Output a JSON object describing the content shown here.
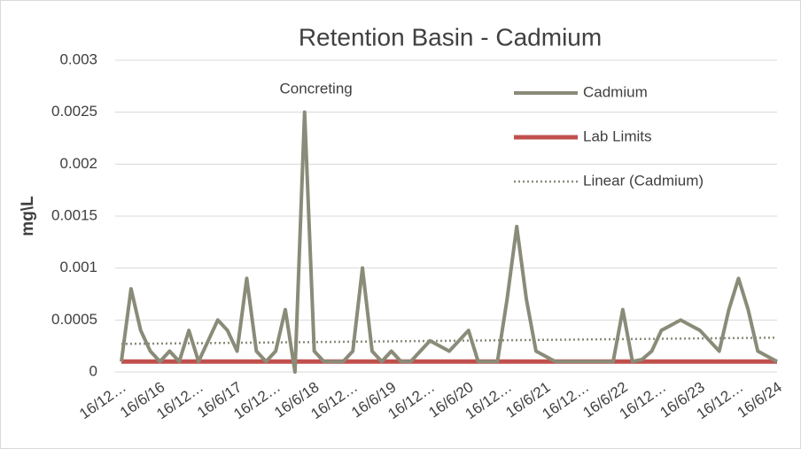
{
  "chart_data": {
    "type": "line",
    "title": "Retention Basin - Cadmium",
    "ylabel": "mg\\L",
    "annotations": [
      {
        "text": "Concreting",
        "category": 20
      }
    ],
    "categories": [
      "16/12…",
      null,
      null,
      null,
      "16/6/16",
      null,
      null,
      null,
      "16/12…",
      null,
      null,
      null,
      "16/6/17",
      null,
      null,
      null,
      "16/12…",
      null,
      null,
      null,
      "16/6/18",
      null,
      null,
      null,
      "16/12…",
      null,
      null,
      null,
      "16/6/19",
      null,
      null,
      null,
      "16/12…",
      null,
      null,
      null,
      "16/6/20",
      null,
      null,
      null,
      "16/12…",
      null,
      null,
      null,
      "16/6/21",
      null,
      null,
      null,
      "16/12…",
      null,
      null,
      null,
      "16/6/22",
      null,
      null,
      null,
      "16/12…",
      null,
      null,
      null,
      "16/6/23",
      null,
      null,
      null,
      "16/12…",
      null,
      null,
      null,
      "16/6/24"
    ],
    "series": [
      {
        "name": "Cadmium",
        "color": "#8a8b78",
        "width": 4,
        "values": [
          0.0001,
          0.0008,
          0.0004,
          0.0002,
          0.0001,
          0.0002,
          0.0001,
          0.0004,
          0.0001,
          0.0003,
          0.0005,
          0.0004,
          0.0002,
          0.0009,
          0.0002,
          0.0001,
          0.0002,
          0.0006,
          0,
          0.0025,
          0.0002,
          0.0001,
          0.0001,
          0.0001,
          0.0002,
          0.001,
          0.0002,
          0.0001,
          0.0002,
          0.0001,
          0.0001,
          0.0002,
          0.0003,
          0.00025,
          0.0002,
          0.0003,
          0.0004,
          0.0001,
          0.0001,
          0.0001,
          0.0007,
          0.0014,
          0.0007,
          0.0002,
          0.00015,
          0.0001,
          0.0001,
          0.0001,
          0.0001,
          0.0001,
          0.0001,
          0.0001,
          0.0006,
          0.0001,
          0.00012,
          0.0002,
          0.0004,
          0.00045,
          0.0005,
          0.00045,
          0.0004,
          0.0003,
          0.0002,
          0.0006,
          0.0009,
          0.0006,
          0.0002,
          0.00015,
          0.0001
        ]
      },
      {
        "name": "Lab Limits",
        "color": "#c0504d",
        "width": 5,
        "values": [
          0.0001,
          0.0001,
          0.0001,
          0.0001,
          0.0001,
          0.0001,
          0.0001,
          0.0001,
          0.0001,
          0.0001,
          0.0001,
          0.0001,
          0.0001,
          0.0001,
          0.0001,
          0.0001,
          0.0001,
          0.0001,
          0.0001,
          0.0001,
          0.0001,
          0.0001,
          0.0001,
          0.0001,
          0.0001,
          0.0001,
          0.0001,
          0.0001,
          0.0001,
          0.0001,
          0.0001,
          0.0001,
          0.0001,
          0.0001,
          0.0001,
          0.0001,
          0.0001,
          0.0001,
          0.0001,
          0.0001,
          0.0001,
          0.0001,
          0.0001,
          0.0001,
          0.0001,
          0.0001,
          0.0001,
          0.0001,
          0.0001,
          0.0001,
          0.0001,
          0.0001,
          0.0001,
          0.0001,
          0.0001,
          0.0001,
          0.0001,
          0.0001,
          0.0001,
          0.0001,
          0.0001,
          0.0001,
          0.0001,
          0.0001,
          0.0001,
          0.0001,
          0.0001,
          0.0001,
          0.0001
        ]
      }
    ],
    "trendline": {
      "name": "Linear (Cadmium)",
      "color": "#8a8b78",
      "style": "dotted",
      "start": 0.00027,
      "end": 0.00033
    },
    "ylim": [
      0,
      0.003
    ],
    "yticks": [
      0,
      0.0005,
      0.001,
      0.0015,
      0.002,
      0.0025,
      0.003
    ],
    "grid": true,
    "legend": "top-right"
  }
}
